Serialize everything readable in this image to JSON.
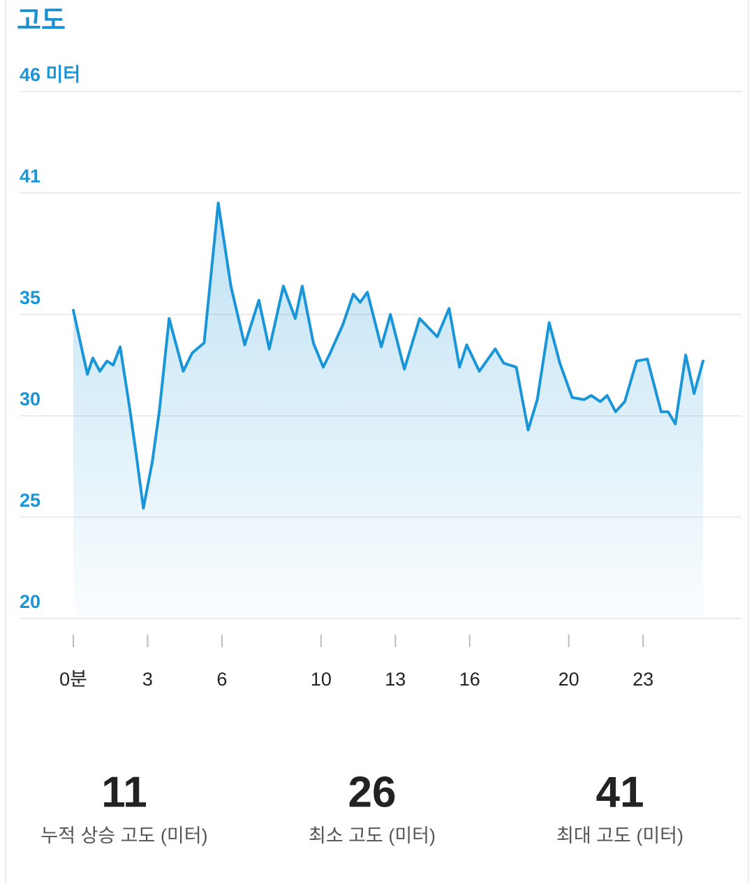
{
  "header": {
    "title": "고도"
  },
  "chart_data": {
    "type": "line",
    "color": "#1a96d8",
    "grid": true,
    "x": [
      0,
      0.57,
      0.79,
      1.07,
      1.36,
      1.61,
      1.89,
      2.26,
      2.54,
      2.83,
      3.19,
      3.47,
      3.87,
      4.44,
      4.8,
      5.28,
      5.85,
      6.36,
      6.92,
      7.49,
      7.91,
      8.48,
      8.96,
      9.24,
      9.69,
      10.09,
      10.37,
      10.88,
      11.3,
      11.58,
      11.87,
      12.43,
      12.8,
      13.36,
      13.98,
      14.69,
      15.17,
      15.59,
      15.88,
      16.39,
      17.03,
      17.37,
      17.88,
      18.36,
      18.73,
      19.21,
      19.64,
      20.14,
      20.62,
      20.91,
      21.27,
      21.55,
      21.89,
      22.26,
      22.74,
      23.17,
      23.73,
      24.01,
      24.3,
      24.72,
      25.06,
      25.42
    ],
    "values": [
      35.2,
      32.05,
      32.85,
      32.2,
      32.7,
      32.5,
      33.4,
      30.5,
      28.1,
      25.44,
      27.75,
      30.2,
      34.8,
      32.2,
      33.1,
      33.6,
      40.5,
      36.4,
      33.5,
      35.7,
      33.3,
      36.4,
      34.8,
      36.4,
      33.6,
      32.4,
      33.1,
      34.5,
      36.0,
      35.6,
      36.1,
      33.4,
      35.0,
      32.3,
      34.8,
      33.9,
      35.3,
      32.4,
      33.5,
      32.2,
      33.3,
      32.6,
      32.4,
      29.3,
      30.8,
      34.6,
      32.6,
      30.9,
      30.8,
      31.0,
      30.7,
      31.0,
      30.2,
      30.7,
      32.7,
      32.8,
      30.2,
      30.2,
      29.6,
      33.0,
      31.1,
      32.7
    ],
    "xlim": [
      0,
      25.42
    ],
    "xticks": [
      {
        "value": 0,
        "label": "0분"
      },
      3,
      6,
      10,
      13,
      16,
      20,
      23
    ],
    "ylim": [
      20,
      46
    ],
    "yticks": [
      20,
      25,
      30,
      35,
      41,
      {
        "value": 46,
        "label": "46 미터"
      }
    ]
  },
  "stats": [
    {
      "value": 11,
      "label": "누적 상승 고도 (미터)"
    },
    {
      "value": 26,
      "label": "최소 고도 (미터)"
    },
    {
      "value": 41,
      "label": "최대 고도 (미터)"
    }
  ]
}
